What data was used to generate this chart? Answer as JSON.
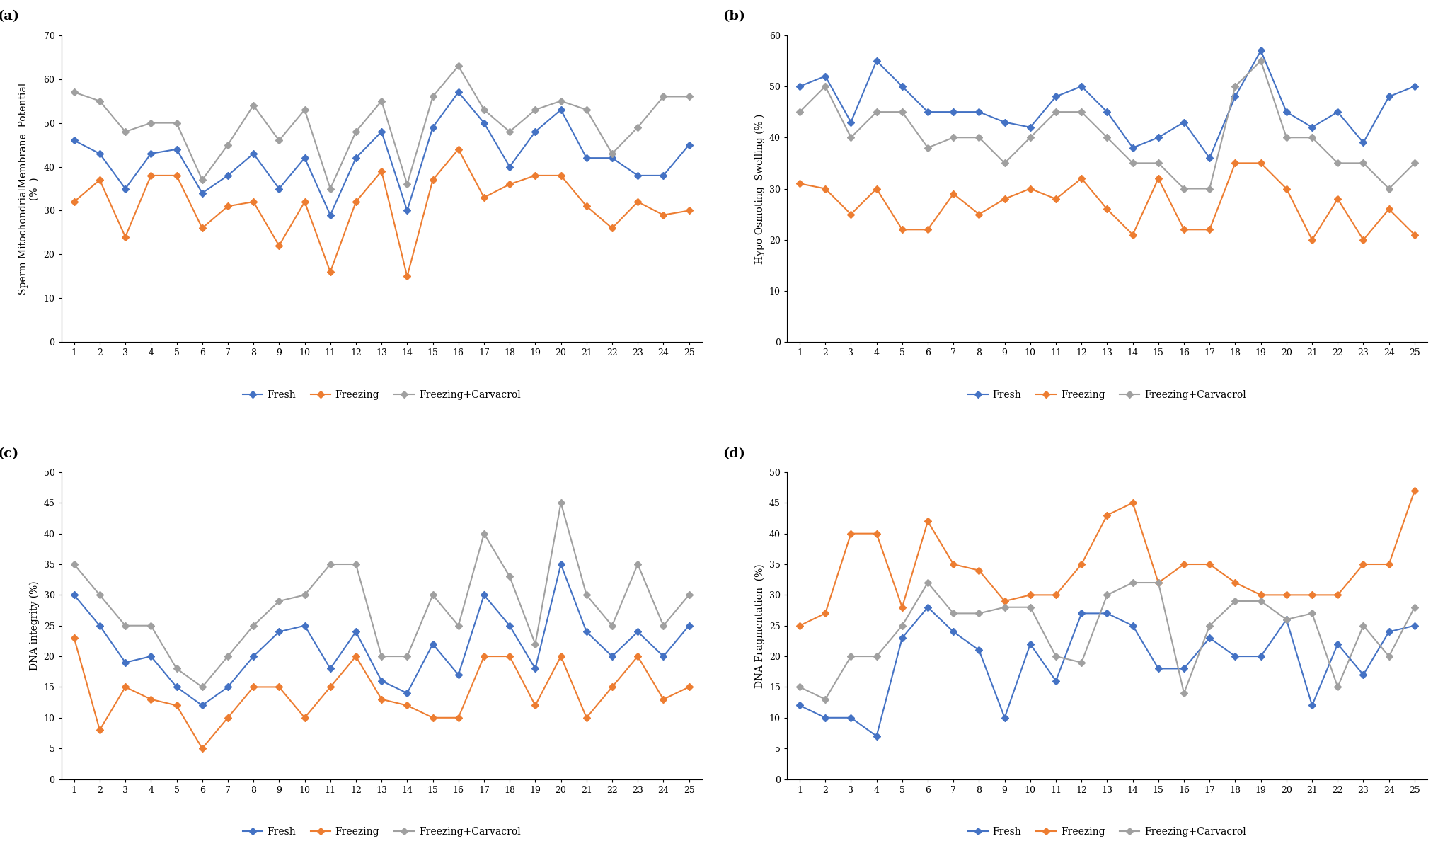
{
  "x": [
    1,
    2,
    3,
    4,
    5,
    6,
    7,
    8,
    9,
    10,
    11,
    12,
    13,
    14,
    15,
    16,
    17,
    18,
    19,
    20,
    21,
    22,
    23,
    24,
    25
  ],
  "panel_a": {
    "title": "(a)",
    "ylabel": "Sperm MitochondrialMembrane  Potential\n(%  )",
    "ylim": [
      0,
      70
    ],
    "yticks": [
      0,
      10,
      20,
      30,
      40,
      50,
      60,
      70
    ],
    "fresh": [
      46,
      43,
      35,
      43,
      44,
      34,
      38,
      43,
      35,
      42,
      29,
      42,
      48,
      30,
      49,
      57,
      50,
      40,
      48,
      53,
      42,
      42,
      38,
      38,
      45
    ],
    "freezing": [
      32,
      37,
      24,
      38,
      38,
      26,
      31,
      32,
      22,
      32,
      16,
      32,
      39,
      15,
      37,
      44,
      33,
      36,
      38,
      38,
      31,
      26,
      32,
      29,
      30
    ],
    "carvacrol": [
      57,
      55,
      48,
      50,
      50,
      37,
      45,
      54,
      46,
      53,
      35,
      48,
      55,
      36,
      56,
      63,
      53,
      48,
      53,
      55,
      53,
      43,
      49,
      56,
      56
    ]
  },
  "panel_b": {
    "title": "(b)",
    "ylabel": "Hypo-Osmoting  Swelling (% )",
    "ylim": [
      0,
      60
    ],
    "yticks": [
      0,
      10,
      20,
      30,
      40,
      50,
      60
    ],
    "fresh": [
      50,
      52,
      43,
      55,
      50,
      45,
      45,
      45,
      43,
      42,
      48,
      50,
      45,
      38,
      40,
      43,
      36,
      48,
      57,
      45,
      42,
      45,
      39,
      48,
      50
    ],
    "freezing": [
      31,
      30,
      25,
      30,
      22,
      22,
      29,
      25,
      28,
      30,
      28,
      32,
      26,
      21,
      32,
      22,
      22,
      35,
      35,
      30,
      20,
      28,
      20,
      26,
      21
    ],
    "carvacrol": [
      45,
      50,
      40,
      45,
      45,
      38,
      40,
      40,
      35,
      40,
      45,
      45,
      40,
      35,
      35,
      30,
      30,
      50,
      55,
      40,
      40,
      35,
      35,
      30,
      35
    ]
  },
  "panel_c": {
    "title": "(c)",
    "ylabel": "DNA integrity (%)",
    "ylim": [
      0,
      50
    ],
    "yticks": [
      0,
      5,
      10,
      15,
      20,
      25,
      30,
      35,
      40,
      45,
      50
    ],
    "fresh": [
      30,
      25,
      19,
      20,
      15,
      12,
      15,
      20,
      24,
      25,
      18,
      24,
      16,
      14,
      22,
      17,
      30,
      25,
      18,
      35,
      24,
      20,
      24,
      20,
      25
    ],
    "freezing": [
      23,
      8,
      15,
      13,
      12,
      5,
      10,
      15,
      15,
      10,
      15,
      20,
      13,
      12,
      10,
      10,
      20,
      20,
      12,
      20,
      10,
      15,
      20,
      13,
      15
    ],
    "carvacrol": [
      35,
      30,
      25,
      25,
      18,
      15,
      20,
      25,
      29,
      30,
      35,
      35,
      20,
      20,
      30,
      25,
      40,
      33,
      22,
      45,
      30,
      25,
      35,
      25,
      30
    ]
  },
  "panel_d": {
    "title": "(d)",
    "ylabel": "DNA Fragmentation  (%)",
    "ylim": [
      0,
      50
    ],
    "yticks": [
      0,
      5,
      10,
      15,
      20,
      25,
      30,
      35,
      40,
      45,
      50
    ],
    "fresh": [
      12,
      10,
      10,
      7,
      23,
      28,
      24,
      21,
      10,
      22,
      16,
      27,
      27,
      25,
      18,
      18,
      23,
      20,
      20,
      26,
      12,
      22,
      17,
      24,
      25
    ],
    "freezing": [
      25,
      27,
      40,
      40,
      28,
      42,
      35,
      34,
      29,
      30,
      30,
      35,
      43,
      45,
      32,
      35,
      35,
      32,
      30,
      30,
      30,
      30,
      35,
      35,
      47
    ],
    "carvacrol": [
      15,
      13,
      20,
      20,
      25,
      32,
      27,
      27,
      28,
      28,
      20,
      19,
      30,
      32,
      32,
      14,
      25,
      29,
      29,
      26,
      27,
      15,
      25,
      20,
      28
    ]
  },
  "fresh_color": "#4472C4",
  "freezing_color": "#ED7D31",
  "carvacrol_color": "#A0A0A0",
  "markersize": 5,
  "linewidth": 1.5,
  "legend_markersize": 8
}
